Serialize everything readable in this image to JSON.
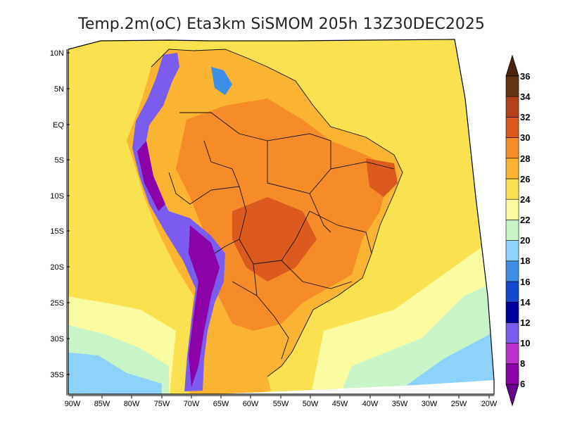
{
  "title": "Temp.2m(oC) Eta3km SiSMOM 205h 13Z30DEC2025",
  "lat_labels": [
    "10N",
    "5N",
    "EQ",
    "5S",
    "10S",
    "15S",
    "20S",
    "25S",
    "30S",
    "35S"
  ],
  "lon_labels": [
    "90W",
    "85W",
    "80W",
    "75W",
    "70W",
    "65W",
    "60W",
    "55W",
    "50W",
    "45W",
    "40W",
    "35W",
    "30W",
    "25W",
    "20W"
  ],
  "colorbar": {
    "levels": [
      "6",
      "8",
      "10",
      "12",
      "14",
      "16",
      "18",
      "20",
      "22",
      "24",
      "26",
      "28",
      "30",
      "32",
      "34",
      "36"
    ],
    "colors": [
      "#8c00a8",
      "#c030d0",
      "#7a5cf0",
      "#0000a0",
      "#1448d0",
      "#3c8ee6",
      "#8cd2fa",
      "#c8f5c8",
      "#fafaa0",
      "#fae150",
      "#fab432",
      "#f58c28",
      "#dc5a1e",
      "#b4401a",
      "#643214"
    ]
  },
  "map_colors": {
    "ocean_warm": "#fae150",
    "ocean_mid": "#fafaa0",
    "ocean_cool": "#c8f5c8",
    "ocean_cold": "#8cd2fa",
    "land_warm": "#fab432",
    "land_hot": "#f58c28",
    "land_veryhot": "#dc5a1e",
    "andes_cold": "#7a5cf0",
    "andes_purple": "#8c00a8",
    "andes_blue": "#3c8ee6"
  }
}
